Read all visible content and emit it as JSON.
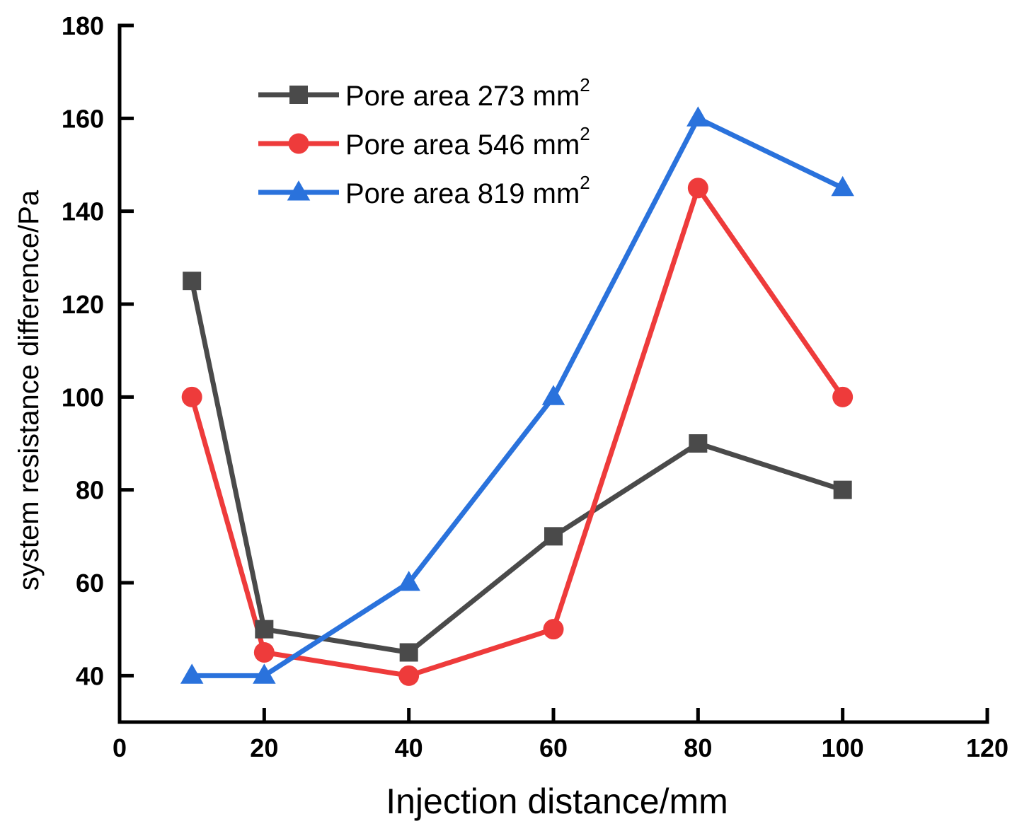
{
  "chart_data": {
    "type": "line",
    "title": "",
    "xlabel": "Injection distance/mm",
    "ylabel": "system resistance difference/Pa",
    "xlim": [
      0,
      120
    ],
    "ylim": [
      30,
      180
    ],
    "x_ticks": [
      0,
      20,
      40,
      60,
      80,
      100,
      120
    ],
    "y_ticks": [
      40,
      60,
      80,
      100,
      120,
      140,
      160,
      180
    ],
    "grid": false,
    "legend_position": "top-center",
    "x": [
      10,
      20,
      40,
      60,
      80,
      100
    ],
    "series": [
      {
        "name": "Pore area 273 mm",
        "name_superscript": "2",
        "color": "#4a4a4a",
        "marker": "square",
        "values": [
          125,
          50,
          45,
          70,
          90,
          80
        ]
      },
      {
        "name": "Pore area 546 mm",
        "name_superscript": "2",
        "color": "#ee3b3b",
        "marker": "circle",
        "values": [
          100,
          45,
          40,
          50,
          145,
          100
        ]
      },
      {
        "name": "Pore area 819 mm",
        "name_superscript": "2",
        "color": "#2a72dc",
        "marker": "triangle",
        "values": [
          40,
          40,
          60,
          100,
          160,
          145
        ]
      }
    ]
  }
}
